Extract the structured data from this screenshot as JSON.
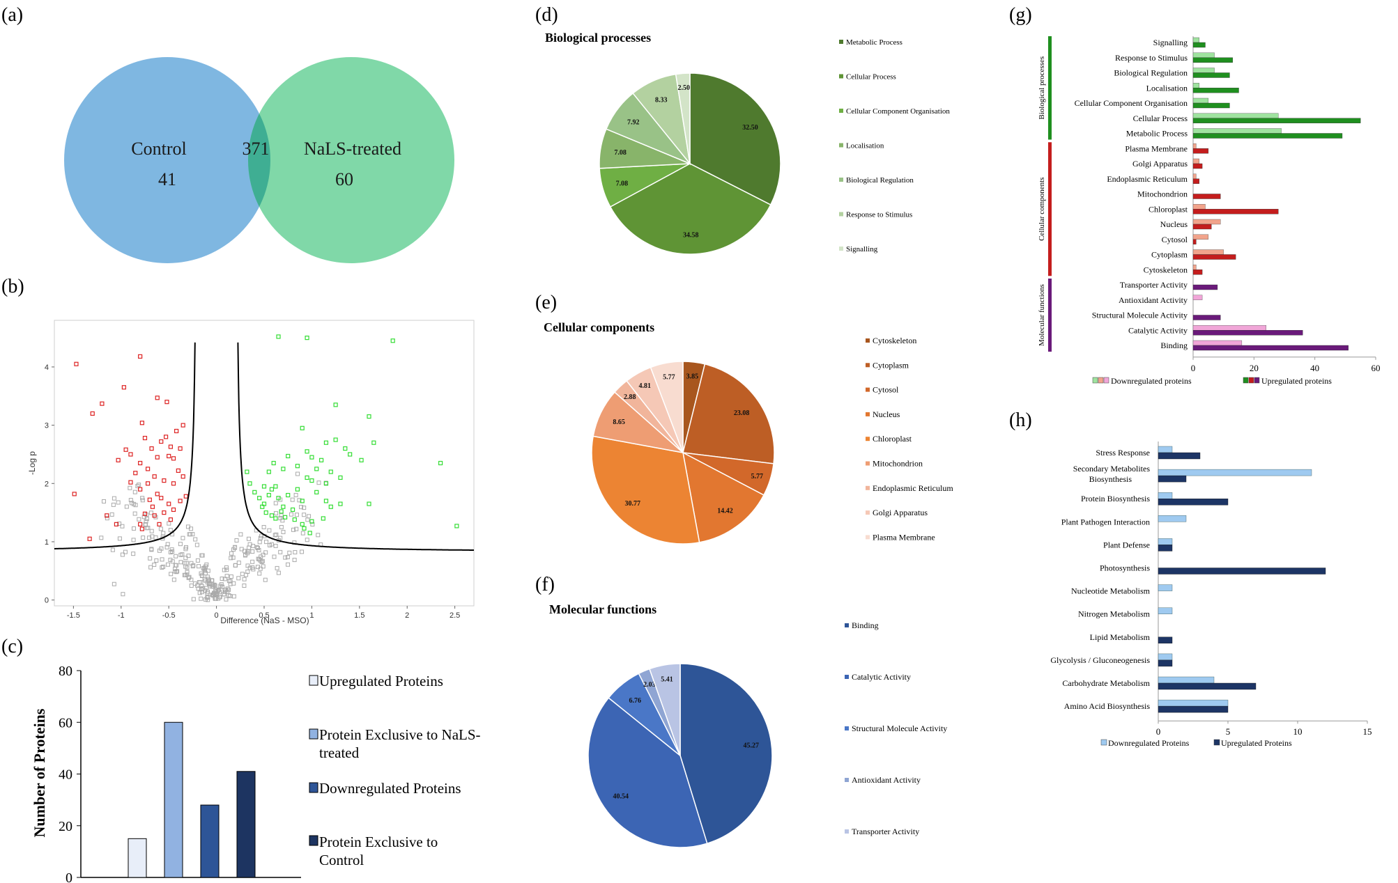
{
  "panel_labels": [
    "(a)",
    "(b)",
    "(c)",
    "(d)",
    "(e)",
    "(f)",
    "(g)",
    "(h)"
  ],
  "colors": {
    "control": "#7fb7e1",
    "treated": "#80d8a8",
    "overlap": "#3fae93",
    "red_point": "#dd2222",
    "green_point": "#33dd33",
    "grey_point": "#aaaaaa",
    "bp": [
      "#4f7a2e",
      "#5f9435",
      "#6faf44",
      "#88b46a",
      "#99c287",
      "#b3d1a0",
      "#d3e4c8"
    ],
    "cc": [
      "#a8561e",
      "#bd5e25",
      "#d2682a",
      "#e27730",
      "#ec8433",
      "#ee9d73",
      "#f1b59b",
      "#f5c8b6",
      "#f8dcd0"
    ],
    "mf": [
      "#2e5597",
      "#3c65b4",
      "#4a77c7",
      "#8fa5d3",
      "#b9c4e4"
    ],
    "up": [
      "#e8eef9",
      "#91b2e1",
      "#2e5597",
      "#1d3461"
    ],
    "g_bp": [
      "#9fe39f",
      "#1f8f1f"
    ],
    "g_cc": [
      "#f2a48c",
      "#c41d1d"
    ],
    "g_mf": [
      "#f1a6d8",
      "#6a1a7a"
    ],
    "h": [
      "#9fcaf0",
      "#1d3565"
    ]
  },
  "venn": {
    "control_label": "Control",
    "control_only": "41",
    "overlap": "371",
    "treated_label": "NaLS-treated",
    "treated_only": "60"
  },
  "chart_data": [
    {
      "panel": "a",
      "type": "venn",
      "sets": [
        {
          "name": "Control",
          "exclusive": 41
        },
        {
          "name": "NaLS-treated",
          "exclusive": 60
        }
      ],
      "intersection": 371
    },
    {
      "panel": "b",
      "type": "scatter",
      "title": "",
      "xlabel": "Difference (NaS - MSO)",
      "ylabel": "-Log p",
      "xlim": [
        -1.7,
        2.7
      ],
      "ylim": [
        -0.1,
        4.8
      ],
      "xticks": [
        "-1.5",
        "-1",
        "-0.5",
        "0",
        "0.5",
        "1",
        "1.5",
        "2",
        "2.5"
      ],
      "yticks": [
        "0",
        "1",
        "2",
        "3",
        "4"
      ],
      "red_points": [
        [
          -1.47,
          4.05
        ],
        [
          -1.3,
          3.2
        ],
        [
          -1.2,
          3.37
        ],
        [
          -0.97,
          3.65
        ],
        [
          -0.8,
          4.18
        ],
        [
          -0.78,
          3.04
        ],
        [
          -0.75,
          2.78
        ],
        [
          -0.68,
          2.6
        ],
        [
          -0.62,
          3.47
        ],
        [
          -0.52,
          3.4
        ],
        [
          -0.95,
          2.58
        ],
        [
          -0.9,
          2.5
        ],
        [
          -0.58,
          2.72
        ],
        [
          -0.53,
          2.8
        ],
        [
          -0.48,
          2.63
        ],
        [
          -0.42,
          2.9
        ],
        [
          -0.35,
          3.0
        ],
        [
          -0.62,
          2.45
        ],
        [
          -0.5,
          2.47
        ],
        [
          -0.45,
          2.43
        ],
        [
          -0.38,
          2.6
        ],
        [
          -1.03,
          2.4
        ],
        [
          -0.8,
          2.35
        ],
        [
          -0.85,
          2.18
        ],
        [
          -0.72,
          2.25
        ],
        [
          -0.65,
          2.12
        ],
        [
          -0.55,
          2.05
        ],
        [
          -0.45,
          2.0
        ],
        [
          -0.4,
          2.22
        ],
        [
          -0.35,
          2.12
        ],
        [
          -0.9,
          2.02
        ],
        [
          -0.72,
          2.0
        ],
        [
          -0.62,
          1.82
        ],
        [
          -0.7,
          1.72
        ],
        [
          -0.8,
          1.9
        ],
        [
          -0.67,
          1.6
        ],
        [
          -0.58,
          1.75
        ],
        [
          -0.5,
          1.65
        ],
        [
          -0.45,
          1.55
        ],
        [
          -0.38,
          1.7
        ],
        [
          -0.32,
          1.78
        ],
        [
          -0.75,
          1.48
        ],
        [
          -0.65,
          1.45
        ],
        [
          -0.55,
          1.5
        ],
        [
          -0.48,
          1.38
        ],
        [
          -0.6,
          1.3
        ],
        [
          -0.8,
          1.3
        ],
        [
          -0.78,
          1.22
        ],
        [
          -1.15,
          1.45
        ],
        [
          -1.49,
          1.82
        ],
        [
          -1.05,
          1.3
        ],
        [
          -1.33,
          1.05
        ]
      ],
      "green_points": [
        [
          0.65,
          4.52
        ],
        [
          0.95,
          4.5
        ],
        [
          1.85,
          4.45
        ],
        [
          1.25,
          3.35
        ],
        [
          1.6,
          3.15
        ],
        [
          0.9,
          2.95
        ],
        [
          1.15,
          2.7
        ],
        [
          1.25,
          2.75
        ],
        [
          1.35,
          2.6
        ],
        [
          1.4,
          2.5
        ],
        [
          1.65,
          2.7
        ],
        [
          1.52,
          2.4
        ],
        [
          2.35,
          2.35
        ],
        [
          2.52,
          1.27
        ],
        [
          0.55,
          2.2
        ],
        [
          0.6,
          2.35
        ],
        [
          0.7,
          2.25
        ],
        [
          0.75,
          2.47
        ],
        [
          0.85,
          2.3
        ],
        [
          0.95,
          2.55
        ],
        [
          1.0,
          2.45
        ],
        [
          1.05,
          2.25
        ],
        [
          1.1,
          2.4
        ],
        [
          1.15,
          2.0
        ],
        [
          1.2,
          2.2
        ],
        [
          1.3,
          2.1
        ],
        [
          0.5,
          1.95
        ],
        [
          0.55,
          1.8
        ],
        [
          0.58,
          1.9
        ],
        [
          0.62,
          1.95
        ],
        [
          0.65,
          1.75
        ],
        [
          0.7,
          1.6
        ],
        [
          0.75,
          1.8
        ],
        [
          0.8,
          1.55
        ],
        [
          0.85,
          1.9
        ],
        [
          0.9,
          1.7
        ],
        [
          0.95,
          2.1
        ],
        [
          1.0,
          2.05
        ],
        [
          1.05,
          1.85
        ],
        [
          1.15,
          1.7
        ],
        [
          1.2,
          1.6
        ],
        [
          1.3,
          1.65
        ],
        [
          1.6,
          1.65
        ],
        [
          0.35,
          2.0
        ],
        [
          0.4,
          1.85
        ],
        [
          0.45,
          1.75
        ],
        [
          0.48,
          1.6
        ],
        [
          0.52,
          1.5
        ],
        [
          0.58,
          1.45
        ],
        [
          0.62,
          1.4
        ],
        [
          0.72,
          1.42
        ],
        [
          0.82,
          1.38
        ],
        [
          0.9,
          1.3
        ],
        [
          1.0,
          1.35
        ],
        [
          0.92,
          1.23
        ],
        [
          0.98,
          1.15
        ],
        [
          0.32,
          2.2
        ],
        [
          0.5,
          1.65
        ],
        [
          0.68,
          1.52
        ],
        [
          1.12,
          1.4
        ]
      ],
      "grey_points_note": "non-significant proteins clustered near the origin"
    },
    {
      "panel": "c",
      "type": "bar",
      "ylabel": "Number of Proteins",
      "ylim": [
        0,
        80
      ],
      "yticks": [
        0,
        20,
        40,
        60,
        80
      ],
      "categories": [
        "Upregulated Proteins",
        "Protein Exclusive to NaLS-treated",
        "Downregulated Proteins",
        "Protein Exclusive to Control"
      ],
      "values": [
        15,
        60,
        28,
        41
      ],
      "legend": [
        {
          "line1": "Upregulated Proteins",
          "line2": ""
        },
        {
          "line1": "Protein Exclusive to NaLS-",
          "line2": "treated"
        },
        {
          "line1": "Downregulated Proteins",
          "line2": ""
        },
        {
          "line1": "Protein Exclusive to",
          "line2": "Control"
        }
      ]
    },
    {
      "panel": "d",
      "type": "pie",
      "title": "Biological processes",
      "categories": [
        "Metabolic Process",
        "Cellular Process",
        "Cellular Component Organisation",
        "Localisation",
        "Biological Regulation",
        "Response to Stimulus",
        "Signalling"
      ],
      "values": [
        32.5,
        34.58,
        7.08,
        7.08,
        7.92,
        8.33,
        2.5
      ],
      "labels": [
        "32.50",
        "34.58",
        "7.08",
        "7.08",
        "7.92",
        "8.33",
        "2.50"
      ]
    },
    {
      "panel": "e",
      "type": "pie",
      "title": "Cellular components",
      "categories": [
        "Cytoskeleton",
        "Cytoplasm",
        "Cytosol",
        "Nucleus",
        "Chloroplast",
        "Mitochondrion",
        "Endoplasmic Reticulum",
        "Golgi Apparatus",
        "Plasma Membrane"
      ],
      "values": [
        3.85,
        23.08,
        5.77,
        14.42,
        30.77,
        8.65,
        2.88,
        4.81,
        5.77
      ],
      "labels": [
        "3.85",
        "23.08",
        "5.77",
        "14.42",
        "30.77",
        "8.65",
        "2.88",
        "4.81",
        "5.77"
      ]
    },
    {
      "panel": "f",
      "type": "pie",
      "title": "Molecular functions",
      "categories": [
        "Binding",
        "Catalytic Activity",
        "Structural Molecule Activity",
        "Antioxidant Activity",
        "Transporter Activity"
      ],
      "values": [
        45.27,
        40.54,
        6.76,
        2.03,
        5.41
      ],
      "labels": [
        "45.27",
        "40.54",
        "6.76",
        "2.03",
        "5.41"
      ]
    },
    {
      "panel": "g",
      "type": "bar",
      "orientation": "horizontal",
      "xlim": [
        0,
        60
      ],
      "xticks": [
        0,
        20,
        40,
        60
      ],
      "groups": [
        "Biological processes",
        "Cellular components",
        "Molecular functions"
      ],
      "categories": [
        "Signalling",
        "Response to Stimulus",
        "Biological Regulation",
        "Localisation",
        "Cellular Component Organisation",
        "Cellular Process",
        "Metabolic Process",
        "Plasma Membrane",
        "Golgi Apparatus",
        "Endoplasmic Reticulum",
        "Mitochondrion",
        "Chloroplast",
        "Nucleus",
        "Cytosol",
        "Cytoplasm",
        "Cytoskeleton",
        "Transporter Activity",
        "Antioxidant Activity",
        "Structural Molecule Activity",
        "Catalytic Activity",
        "Binding"
      ],
      "group_of": [
        0,
        0,
        0,
        0,
        0,
        0,
        0,
        1,
        1,
        1,
        1,
        1,
        1,
        1,
        1,
        1,
        2,
        2,
        2,
        2,
        2
      ],
      "series": [
        {
          "name": "Downregulated proteins",
          "values": [
            2,
            7,
            7,
            2,
            5,
            28,
            29,
            1,
            2,
            1,
            0,
            4,
            9,
            5,
            10,
            1,
            0,
            3,
            0,
            24,
            16
          ]
        },
        {
          "name": "Upregulated proteins",
          "values": [
            4,
            13,
            12,
            15,
            12,
            55,
            49,
            5,
            3,
            2,
            9,
            28,
            6,
            1,
            14,
            3,
            8,
            0,
            9,
            36,
            51
          ]
        }
      ]
    },
    {
      "panel": "h",
      "type": "bar",
      "orientation": "horizontal",
      "xlim": [
        0,
        15
      ],
      "xticks": [
        0,
        5,
        10,
        15
      ],
      "categories": [
        {
          "line1": "Stress Response",
          "line2": ""
        },
        {
          "line1": "Secondary Metabolites",
          "line2": "Biosynthesis"
        },
        {
          "line1": "Protein Biosynthesis",
          "line2": ""
        },
        {
          "line1": "Plant Pathogen Interaction",
          "line2": ""
        },
        {
          "line1": "Plant Defense",
          "line2": ""
        },
        {
          "line1": "Photosynthesis",
          "line2": ""
        },
        {
          "line1": "Nucleotide Metabolism",
          "line2": ""
        },
        {
          "line1": "Nitrogen Metabolism",
          "line2": ""
        },
        {
          "line1": "Lipid Metabolism",
          "line2": ""
        },
        {
          "line1": "Glycolysis / Gluconeogenesis",
          "line2": ""
        },
        {
          "line1": "Carbohydrate Metabolism",
          "line2": ""
        },
        {
          "line1": "Amino Acid Biosynthesis",
          "line2": ""
        }
      ],
      "series": [
        {
          "name": "Downregulated Proteins",
          "values": [
            1,
            11,
            1,
            2,
            1,
            0,
            1,
            1,
            0,
            1,
            4,
            5
          ]
        },
        {
          "name": "Upregulated Proteins",
          "values": [
            3,
            2,
            5,
            0,
            1,
            12,
            0,
            0,
            1,
            1,
            7,
            5
          ]
        }
      ]
    }
  ]
}
